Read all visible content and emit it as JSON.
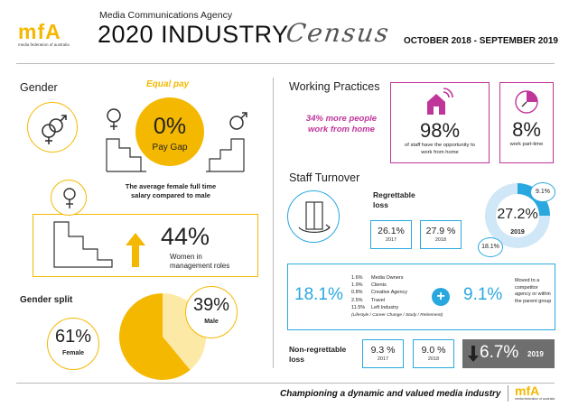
{
  "header": {
    "logo_text": "mfA",
    "logo_sub": "media federation of australia",
    "agency": "Media Communications Agency",
    "title": "2020 INDUSTRY",
    "title_script": "Census",
    "dates": "OCTOBER 2018  - SEPTEMBER 2019"
  },
  "gender": {
    "title": "Gender",
    "equal_pay_label": "Equal pay",
    "pay_gap_value": "0%",
    "pay_gap_label": "Pay Gap",
    "salary_note": "The average female full time salary compared to male",
    "management_value": "44%",
    "management_label": "Women in management roles",
    "split_title": "Gender split",
    "female_value": "61%",
    "female_label": "Female",
    "male_value": "39%",
    "male_label": "Male",
    "colors": {
      "accent": "#f5b800",
      "female": "#f5b800",
      "male": "#fde9a6"
    }
  },
  "working": {
    "title": "Working Practices",
    "highlight": "34% more people work from home",
    "wfh_value": "98%",
    "wfh_label": "of staff have the opportunity to work from home",
    "parttime_value": "8%",
    "parttime_label": "work part-time",
    "colors": {
      "accent": "#c0359a"
    }
  },
  "turnover": {
    "title": "Staff Turnover",
    "regrettable_label": "Regrettable loss",
    "reg_2017_value": "26.1%",
    "reg_2017_year": "2017",
    "reg_2018_value": "27.9 %",
    "reg_2018_year": "2018",
    "donut_value": "27.2%",
    "donut_year": "2019",
    "donut_small_1": "9.1%",
    "donut_small_2": "18.1%",
    "left_total": "18.1%",
    "breakdown": [
      {
        "pct": "1.6%",
        "label": "Media Owners"
      },
      {
        "pct": "1.9%",
        "label": "Clients"
      },
      {
        "pct": "0.8%",
        "label": "Creative Agency"
      },
      {
        "pct": "2.5%",
        "label": "Travel"
      },
      {
        "pct": "11.5%",
        "label": "Left Industry"
      }
    ],
    "breakdown_note": "(Lifestyle / Career Change / Study / Retirement)",
    "plus": "+",
    "right_total": "9.1%",
    "right_note": "Moved to a competitor agency or within the parent group",
    "nonreg_label": "Non-regrettable loss",
    "nonreg_2017_value": "9.3 %",
    "nonreg_2017_year": "2017",
    "nonreg_2018_value": "9.0 %",
    "nonreg_2018_year": "2018",
    "nonreg_2019_value": "6.7%",
    "nonreg_2019_year": "2019",
    "colors": {
      "accent": "#29a8e0",
      "light": "#cfe7f6",
      "dark_box": "#6e6e6e"
    }
  },
  "footer": {
    "tagline": "Championing a dynamic and valued media industry",
    "logo_text": "mfA",
    "logo_sub": "media federation of australia"
  }
}
